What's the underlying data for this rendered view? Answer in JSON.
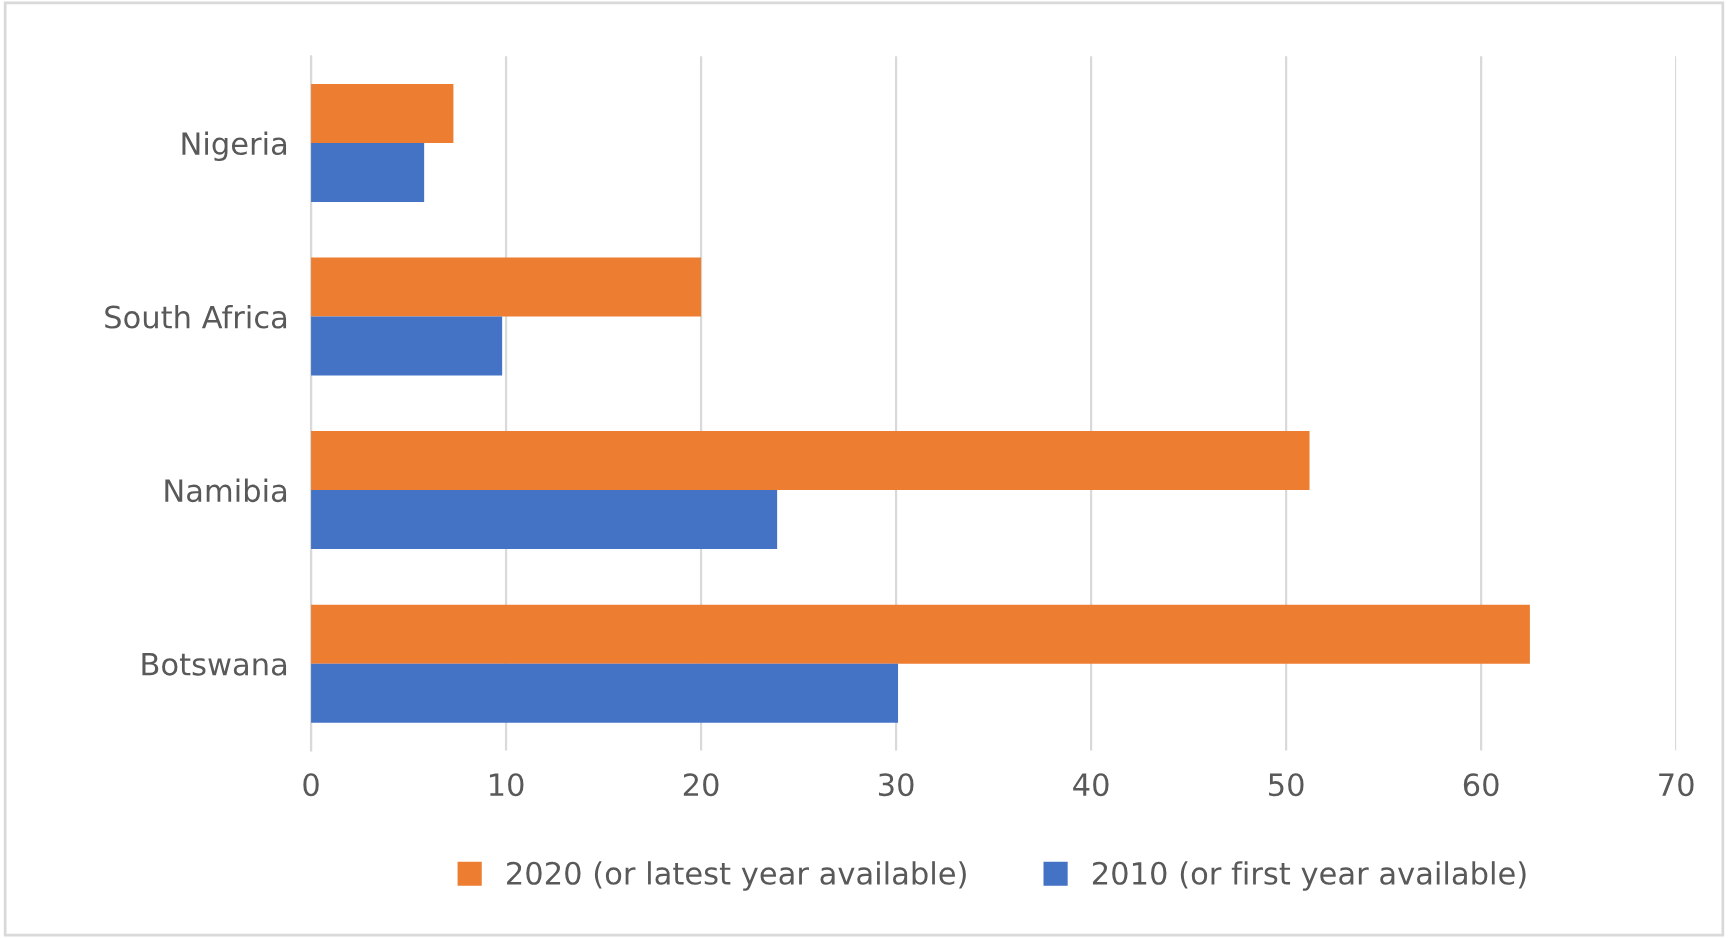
{
  "chart_data": {
    "type": "bar",
    "orientation": "horizontal",
    "categories": [
      "Nigeria",
      "South Africa",
      "Namibia",
      "Botswana"
    ],
    "series": [
      {
        "name": "2020 (or latest year available)",
        "color": "#ed7d31",
        "values": [
          7.3,
          20,
          51.2,
          62.5
        ]
      },
      {
        "name": "2010 (or first year available)",
        "color": "#4472c4",
        "values": [
          5.8,
          9.8,
          23.9,
          30.1
        ]
      }
    ],
    "xlim": [
      0,
      70
    ],
    "xticks": [
      0,
      10,
      20,
      30,
      40,
      50,
      60,
      70
    ],
    "grid": "x",
    "legend": "bottom"
  }
}
